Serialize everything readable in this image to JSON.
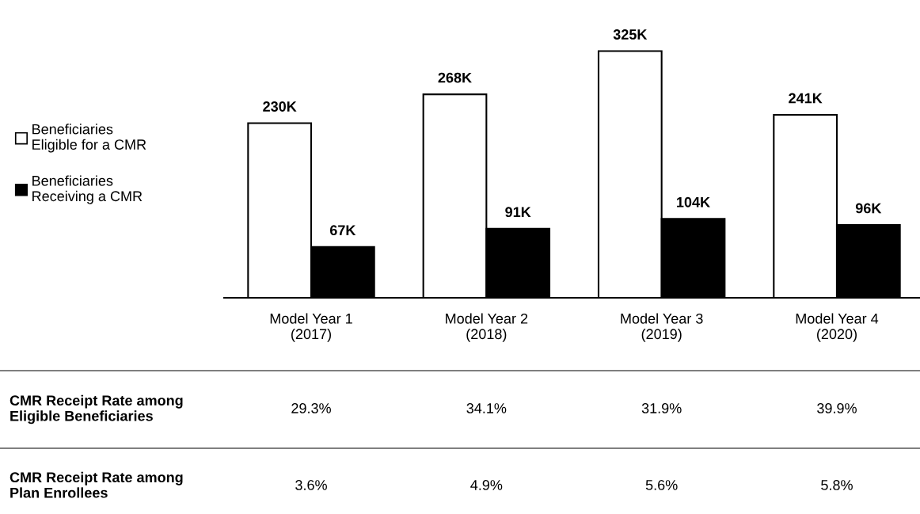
{
  "chart_data": {
    "type": "bar",
    "categories": [
      "Model Year 1\n(2017)",
      "Model Year 2\n(2018)",
      "Model Year 3\n(2019)",
      "Model Year 4\n(2020)"
    ],
    "series": [
      {
        "name": "Beneficiaries\nEligible for a CMR",
        "color": "#ffffff",
        "values": [
          230,
          268,
          325,
          241
        ],
        "value_labels": [
          "230K",
          "268K",
          "325K",
          "241K"
        ]
      },
      {
        "name": "Beneficiaries\nReceiving a CMR",
        "color": "#000000",
        "values": [
          67,
          91,
          104,
          96
        ],
        "value_labels": [
          "67K",
          "91K",
          "104K",
          "96K"
        ]
      }
    ],
    "legend": "left",
    "grid": false,
    "annotations": [
      "CMR Receipt Rate among\nEligible Beneficiaries",
      "29.3%",
      "34.1%",
      "31.9%",
      "39.9%",
      "CMR Receipt Rate among\nPlan Enrollees",
      "3.6%",
      "4.9%",
      "5.6%",
      "5.8%"
    ]
  }
}
